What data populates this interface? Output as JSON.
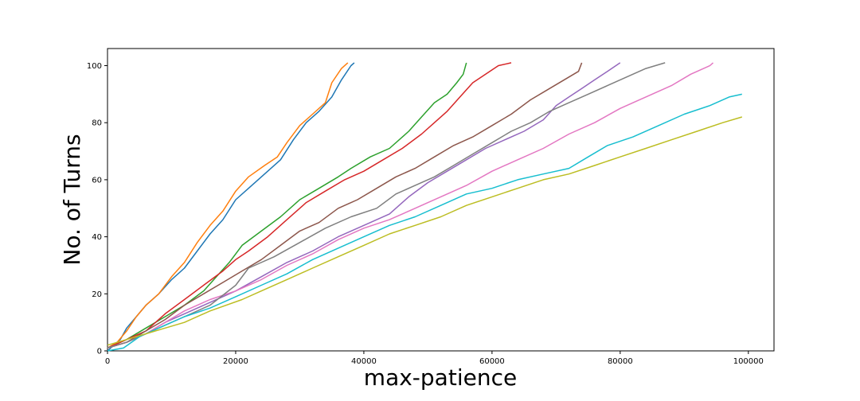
{
  "chart_data": {
    "type": "line",
    "title": "",
    "xlabel": "max-patience",
    "ylabel": "No. of Turns",
    "xlim": [
      0,
      104000
    ],
    "ylim": [
      0,
      106
    ],
    "xticks": [
      0,
      20000,
      40000,
      60000,
      80000,
      100000
    ],
    "yticks": [
      0,
      20,
      40,
      60,
      80,
      100
    ],
    "grid": false,
    "legend": "none",
    "series": [
      {
        "color": "#1f77b4",
        "points": [
          [
            0,
            0
          ],
          [
            1000,
            2
          ],
          [
            2000,
            4
          ],
          [
            3000,
            8
          ],
          [
            4500,
            12
          ],
          [
            6000,
            16
          ],
          [
            8000,
            20
          ],
          [
            10000,
            25
          ],
          [
            12000,
            29
          ],
          [
            14000,
            35
          ],
          [
            16000,
            41
          ],
          [
            18000,
            46
          ],
          [
            20000,
            53
          ],
          [
            22000,
            57
          ],
          [
            25000,
            63
          ],
          [
            27000,
            67
          ],
          [
            29000,
            74
          ],
          [
            31000,
            80
          ],
          [
            33000,
            84
          ],
          [
            35000,
            89
          ],
          [
            36500,
            95
          ],
          [
            38000,
            100
          ],
          [
            38500,
            101
          ]
        ]
      },
      {
        "color": "#ff7f0e",
        "points": [
          [
            0,
            1
          ],
          [
            1500,
            3
          ],
          [
            3000,
            7
          ],
          [
            4500,
            12
          ],
          [
            6000,
            16
          ],
          [
            8000,
            20
          ],
          [
            10000,
            26
          ],
          [
            12000,
            31
          ],
          [
            14000,
            38
          ],
          [
            16000,
            44
          ],
          [
            18000,
            49
          ],
          [
            20000,
            56
          ],
          [
            22000,
            61
          ],
          [
            24500,
            65
          ],
          [
            26500,
            68
          ],
          [
            28000,
            73
          ],
          [
            30000,
            79
          ],
          [
            32000,
            83
          ],
          [
            34000,
            87
          ],
          [
            35000,
            94
          ],
          [
            36500,
            99
          ],
          [
            37500,
            101
          ]
        ]
      },
      {
        "color": "#2ca02c",
        "points": [
          [
            0,
            1
          ],
          [
            3000,
            4
          ],
          [
            6000,
            8
          ],
          [
            9000,
            12
          ],
          [
            12000,
            16
          ],
          [
            15000,
            21
          ],
          [
            17000,
            26
          ],
          [
            19000,
            31
          ],
          [
            21000,
            37
          ],
          [
            24000,
            42
          ],
          [
            27000,
            47
          ],
          [
            30000,
            53
          ],
          [
            33000,
            57
          ],
          [
            36000,
            61
          ],
          [
            38000,
            64
          ],
          [
            41000,
            68
          ],
          [
            44000,
            71
          ],
          [
            47000,
            77
          ],
          [
            49000,
            82
          ],
          [
            51000,
            87
          ],
          [
            53000,
            90
          ],
          [
            54500,
            94
          ],
          [
            55500,
            97
          ],
          [
            56000,
            101
          ]
        ]
      },
      {
        "color": "#d62728",
        "points": [
          [
            0,
            1
          ],
          [
            3000,
            4
          ],
          [
            6000,
            7
          ],
          [
            9000,
            13
          ],
          [
            12000,
            18
          ],
          [
            15000,
            23
          ],
          [
            18000,
            28
          ],
          [
            20000,
            32
          ],
          [
            22000,
            35
          ],
          [
            25000,
            40
          ],
          [
            28000,
            46
          ],
          [
            31000,
            52
          ],
          [
            34000,
            56
          ],
          [
            37000,
            60
          ],
          [
            40000,
            63
          ],
          [
            43000,
            67
          ],
          [
            46000,
            71
          ],
          [
            49000,
            76
          ],
          [
            51000,
            80
          ],
          [
            53000,
            84
          ],
          [
            55000,
            89
          ],
          [
            57000,
            94
          ],
          [
            59000,
            97
          ],
          [
            61000,
            100
          ],
          [
            63000,
            101
          ]
        ]
      },
      {
        "color": "#9467bd",
        "points": [
          [
            0,
            1
          ],
          [
            3000,
            3
          ],
          [
            6000,
            6
          ],
          [
            9000,
            10
          ],
          [
            12000,
            13
          ],
          [
            16000,
            17
          ],
          [
            20000,
            21
          ],
          [
            24000,
            26
          ],
          [
            28000,
            31
          ],
          [
            32000,
            35
          ],
          [
            36000,
            40
          ],
          [
            40000,
            44
          ],
          [
            44000,
            48
          ],
          [
            47000,
            54
          ],
          [
            50000,
            59
          ],
          [
            53000,
            63
          ],
          [
            56000,
            67
          ],
          [
            59000,
            71
          ],
          [
            62000,
            74
          ],
          [
            65000,
            77
          ],
          [
            68000,
            81
          ],
          [
            70000,
            86
          ],
          [
            72000,
            89
          ],
          [
            74000,
            92
          ],
          [
            76000,
            95
          ],
          [
            78000,
            98
          ],
          [
            80000,
            101
          ]
        ]
      },
      {
        "color": "#8c564b",
        "points": [
          [
            0,
            1
          ],
          [
            3000,
            3
          ],
          [
            6000,
            7
          ],
          [
            9000,
            11
          ],
          [
            12000,
            16
          ],
          [
            15000,
            20
          ],
          [
            18000,
            24
          ],
          [
            21000,
            28
          ],
          [
            24000,
            32
          ],
          [
            27000,
            37
          ],
          [
            30000,
            42
          ],
          [
            33000,
            45
          ],
          [
            36000,
            50
          ],
          [
            39000,
            53
          ],
          [
            42000,
            57
          ],
          [
            45000,
            61
          ],
          [
            48000,
            64
          ],
          [
            51000,
            68
          ],
          [
            54000,
            72
          ],
          [
            57000,
            75
          ],
          [
            60000,
            79
          ],
          [
            63000,
            83
          ],
          [
            66000,
            88
          ],
          [
            69000,
            92
          ],
          [
            72000,
            96
          ],
          [
            73500,
            98
          ],
          [
            74000,
            101
          ]
        ]
      },
      {
        "color": "#e377c2",
        "points": [
          [
            0,
            1
          ],
          [
            3000,
            3
          ],
          [
            6000,
            6
          ],
          [
            9000,
            10
          ],
          [
            12000,
            14
          ],
          [
            16000,
            18
          ],
          [
            20000,
            21
          ],
          [
            24000,
            25
          ],
          [
            28000,
            30
          ],
          [
            32000,
            34
          ],
          [
            36000,
            39
          ],
          [
            40000,
            43
          ],
          [
            44000,
            46
          ],
          [
            48000,
            50
          ],
          [
            52000,
            54
          ],
          [
            56000,
            58
          ],
          [
            60000,
            63
          ],
          [
            64000,
            67
          ],
          [
            68000,
            71
          ],
          [
            72000,
            76
          ],
          [
            76000,
            80
          ],
          [
            80000,
            85
          ],
          [
            84000,
            89
          ],
          [
            88000,
            93
          ],
          [
            91000,
            97
          ],
          [
            94000,
            100
          ],
          [
            94500,
            101
          ]
        ]
      },
      {
        "color": "#7f7f7f",
        "points": [
          [
            0,
            1
          ],
          [
            3000,
            3
          ],
          [
            6000,
            6
          ],
          [
            9000,
            9
          ],
          [
            12000,
            12
          ],
          [
            16000,
            16
          ],
          [
            20000,
            23
          ],
          [
            22000,
            29
          ],
          [
            26000,
            33
          ],
          [
            30000,
            38
          ],
          [
            34000,
            43
          ],
          [
            38000,
            47
          ],
          [
            42000,
            50
          ],
          [
            45000,
            55
          ],
          [
            48000,
            58
          ],
          [
            51000,
            61
          ],
          [
            54000,
            65
          ],
          [
            57000,
            69
          ],
          [
            60000,
            73
          ],
          [
            63000,
            77
          ],
          [
            66000,
            80
          ],
          [
            69000,
            84
          ],
          [
            72000,
            87
          ],
          [
            75000,
            90
          ],
          [
            78000,
            93
          ],
          [
            81000,
            96
          ],
          [
            84000,
            99
          ],
          [
            87000,
            101
          ]
        ]
      },
      {
        "color": "#17becf",
        "points": [
          [
            0,
            0
          ],
          [
            2500,
            1
          ],
          [
            5000,
            5
          ],
          [
            8000,
            8
          ],
          [
            12000,
            12
          ],
          [
            16000,
            15
          ],
          [
            20000,
            19
          ],
          [
            24000,
            23
          ],
          [
            28000,
            27
          ],
          [
            32000,
            32
          ],
          [
            36000,
            36
          ],
          [
            40000,
            40
          ],
          [
            44000,
            44
          ],
          [
            48000,
            47
          ],
          [
            52000,
            51
          ],
          [
            56000,
            55
          ],
          [
            60000,
            57
          ],
          [
            64000,
            60
          ],
          [
            68000,
            62
          ],
          [
            72000,
            64
          ],
          [
            75000,
            68
          ],
          [
            78000,
            72
          ],
          [
            82000,
            75
          ],
          [
            86000,
            79
          ],
          [
            90000,
            83
          ],
          [
            94000,
            86
          ],
          [
            97000,
            89
          ],
          [
            99000,
            90
          ]
        ]
      },
      {
        "color": "#bcbd22",
        "points": [
          [
            0,
            2
          ],
          [
            3000,
            4
          ],
          [
            6000,
            6
          ],
          [
            9000,
            8
          ],
          [
            12000,
            10
          ],
          [
            16000,
            14
          ],
          [
            21000,
            18
          ],
          [
            24000,
            21
          ],
          [
            28000,
            25
          ],
          [
            32000,
            29
          ],
          [
            36000,
            33
          ],
          [
            40000,
            37
          ],
          [
            44000,
            41
          ],
          [
            48000,
            44
          ],
          [
            52000,
            47
          ],
          [
            56000,
            51
          ],
          [
            60000,
            54
          ],
          [
            64000,
            57
          ],
          [
            68000,
            60
          ],
          [
            72000,
            62
          ],
          [
            76000,
            65
          ],
          [
            80000,
            68
          ],
          [
            84000,
            71
          ],
          [
            88000,
            74
          ],
          [
            92000,
            77
          ],
          [
            96000,
            80
          ],
          [
            99000,
            82
          ]
        ]
      }
    ]
  }
}
